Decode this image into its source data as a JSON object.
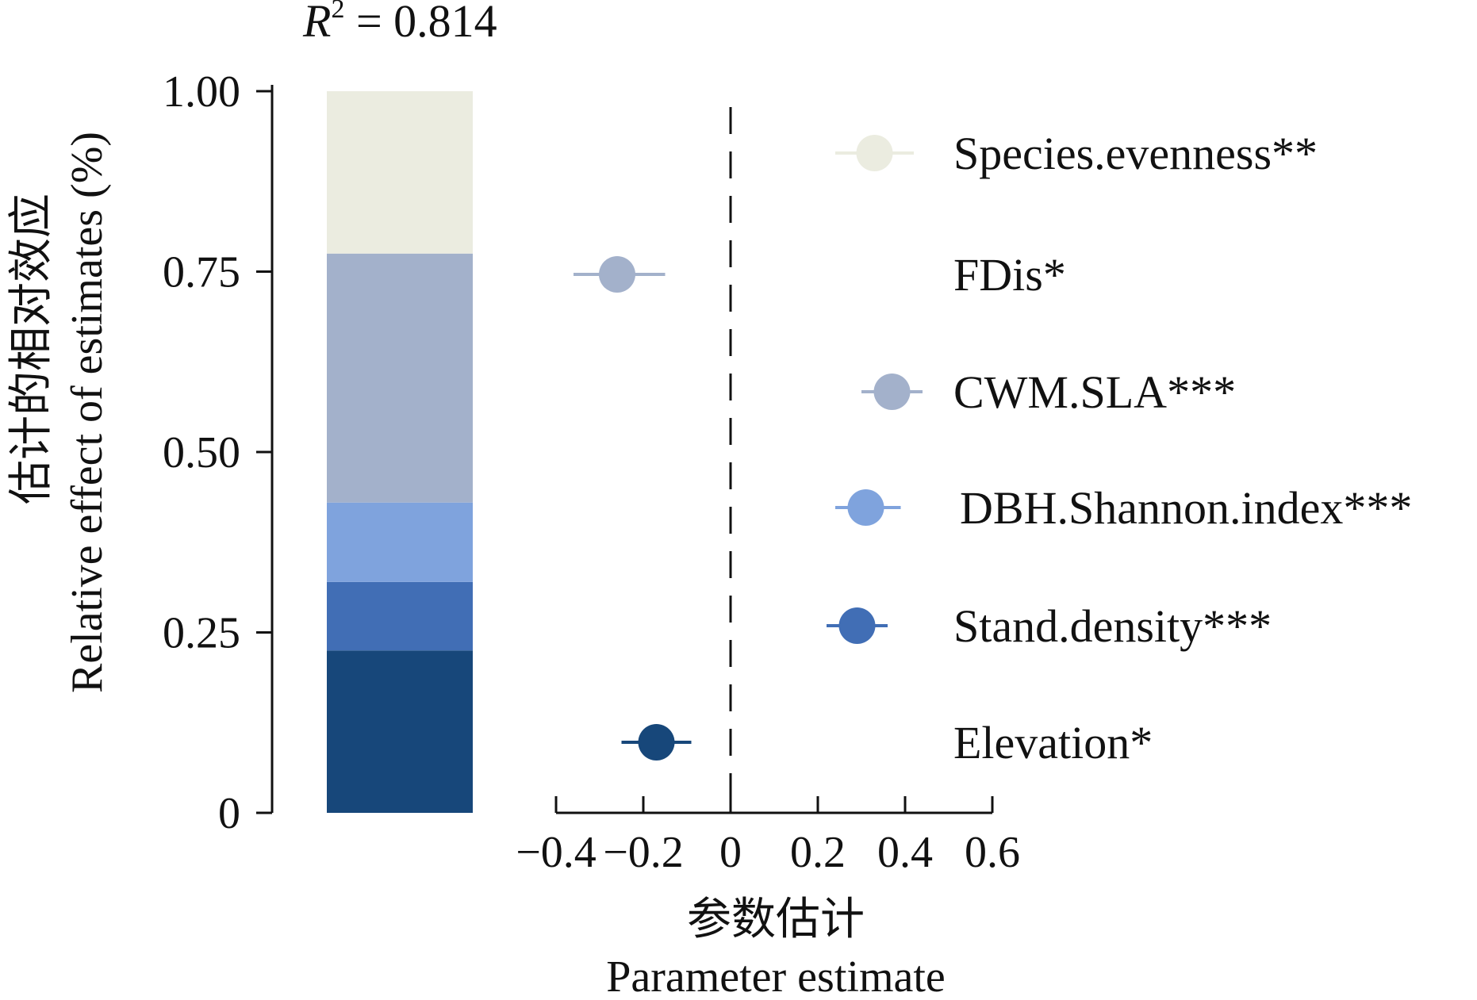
{
  "r2_text": {
    "symbol": "R",
    "exponent": "2",
    "equals_value": " = 0.814"
  },
  "chart_data": [
    {
      "type": "bar",
      "orientation": "stacked-vertical",
      "ylabel_cn": "估计的相对效应",
      "ylabel_en": "Relative effect of estimates (%)",
      "ylim": [
        0,
        1
      ],
      "yticks": [
        "0",
        "0.25",
        "0.50",
        "0.75",
        "1.00"
      ],
      "ytick_values": [
        0,
        0.25,
        0.5,
        0.75,
        1.0
      ],
      "segments": [
        {
          "predictor": "Elevation",
          "value": 0.225,
          "color": "#17477a"
        },
        {
          "predictor": "Stand.density",
          "value": 0.095,
          "color": "#416eb5"
        },
        {
          "predictor": "DBH.Shannon.index",
          "value": 0.11,
          "color": "#7fa3dd"
        },
        {
          "predictor": "CWM.SLA",
          "value": 0.345,
          "color": "#a3b1cb"
        },
        {
          "predictor": "FDis",
          "value": 0.0,
          "color": "#a3b1cb"
        },
        {
          "predictor": "Species.evenness",
          "value": 0.225,
          "color": "#ebece0"
        }
      ]
    },
    {
      "type": "scatter",
      "subtype": "coefficient-plot",
      "xlabel_cn": "参数估计",
      "xlabel_en": "Parameter estimate",
      "xlim": [
        -0.4,
        0.6
      ],
      "xticks": [
        "−0.4",
        "−0.2",
        "0",
        "0.2",
        "0.4",
        "0.6"
      ],
      "xtick_values": [
        -0.4,
        -0.2,
        0,
        0.2,
        0.4,
        0.6
      ],
      "reference_line": 0,
      "points": [
        {
          "label": "Species.evenness**",
          "estimate": 0.33,
          "ci": [
            0.24,
            0.42
          ],
          "color": "#ebece0"
        },
        {
          "label": "FDis*",
          "estimate": -0.26,
          "ci": [
            -0.36,
            -0.15
          ],
          "color": "#a3b1cb"
        },
        {
          "label": "CWM.SLA***",
          "estimate": 0.37,
          "ci": [
            0.3,
            0.44
          ],
          "color": "#a3b1cb"
        },
        {
          "label": "DBH.Shannon.index***",
          "estimate": 0.31,
          "ci": [
            0.24,
            0.39
          ],
          "color": "#7fa3dd"
        },
        {
          "label": "Stand.density***",
          "estimate": 0.29,
          "ci": [
            0.22,
            0.36
          ],
          "color": "#416eb5"
        },
        {
          "label": "Elevation*",
          "estimate": -0.17,
          "ci": [
            -0.25,
            -0.09
          ],
          "color": "#17477a"
        }
      ]
    }
  ]
}
